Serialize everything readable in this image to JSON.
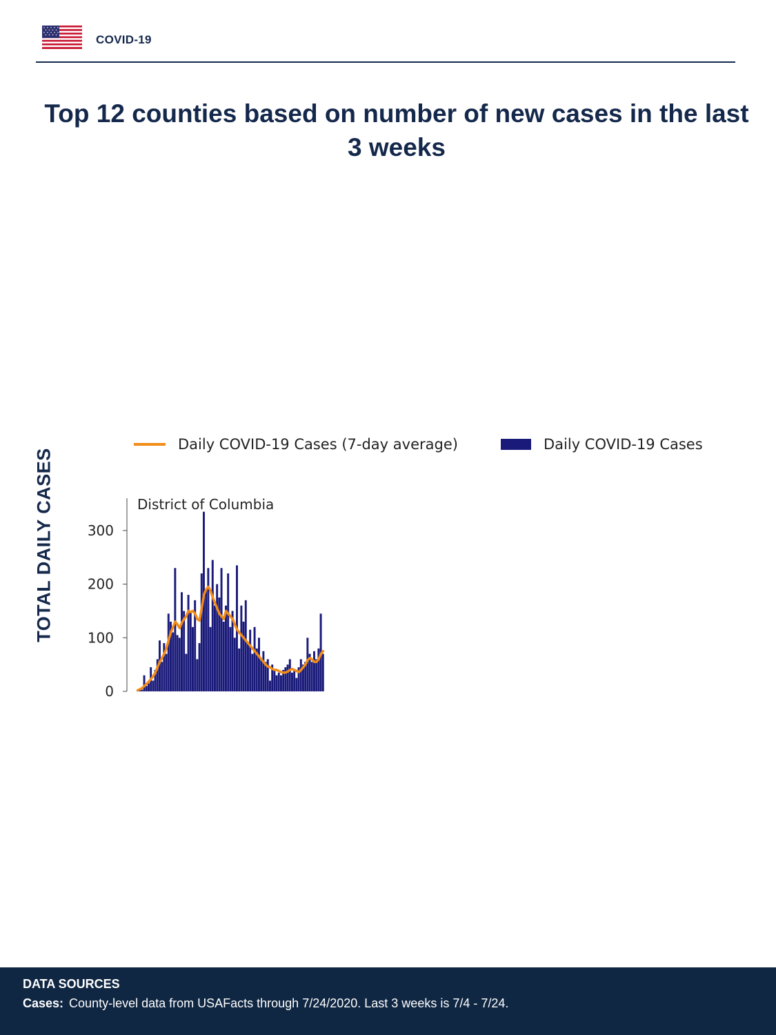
{
  "header": {
    "title": "COVID-19",
    "flag_icon": "us-flag-icon",
    "accent_color": "#14284b"
  },
  "page_title": "Top 12 counties based on number of new cases in the last 3 weeks",
  "y_axis_title": "TOTAL DAILY CASES",
  "legend": {
    "line_label": "Daily COVID-19 Cases (7-day average)",
    "bar_label": "Daily COVID-19 Cases"
  },
  "footer": {
    "heading": "DATA SOURCES",
    "cases_label": "Cases:",
    "cases_text": "County-level data from USAFacts through 7/24/2020. Last 3 weeks is 7/4 - 7/24."
  },
  "chart_data": {
    "type": "bar",
    "title": "District of Columbia",
    "ylabel": "TOTAL DAILY CASES",
    "xlabel": "",
    "ylim": [
      0,
      350
    ],
    "yticks": [
      0,
      100,
      200,
      300
    ],
    "grid": false,
    "legend_position": "top",
    "colors": {
      "bars": "#1a1a7a",
      "line": "#f28c18"
    },
    "series": [
      {
        "name": "Daily COVID-19 Cases",
        "kind": "bar",
        "values": [
          2,
          5,
          3,
          30,
          10,
          15,
          45,
          20,
          40,
          60,
          95,
          55,
          90,
          70,
          145,
          130,
          110,
          230,
          105,
          100,
          185,
          150,
          70,
          180,
          150,
          120,
          170,
          60,
          90,
          220,
          335,
          190,
          230,
          120,
          245,
          160,
          200,
          175,
          230,
          130,
          160,
          220,
          120,
          150,
          100,
          235,
          80,
          160,
          130,
          170,
          90,
          115,
          70,
          120,
          80,
          100,
          60,
          75,
          55,
          60,
          20,
          50,
          40,
          30,
          35,
          30,
          40,
          45,
          50,
          60,
          35,
          40,
          25,
          45,
          60,
          50,
          55,
          100,
          70,
          55,
          75,
          60,
          80,
          145,
          70
        ]
      },
      {
        "name": "Daily COVID-19 Cases (7-day average)",
        "kind": "line",
        "values": [
          2,
          4,
          6,
          10,
          14,
          18,
          23,
          28,
          35,
          45,
          55,
          62,
          70,
          80,
          95,
          110,
          120,
          130,
          125,
          118,
          128,
          135,
          140,
          150,
          148,
          150,
          145,
          135,
          132,
          155,
          180,
          190,
          195,
          188,
          175,
          165,
          155,
          145,
          140,
          135,
          150,
          145,
          140,
          135,
          125,
          115,
          110,
          105,
          100,
          95,
          90,
          85,
          80,
          75,
          70,
          65,
          60,
          55,
          50,
          46,
          45,
          42,
          40,
          40,
          38,
          36,
          35,
          35,
          37,
          40,
          42,
          40,
          38,
          36,
          40,
          45,
          50,
          58,
          62,
          60,
          55,
          55,
          60,
          70,
          75
        ]
      }
    ]
  }
}
